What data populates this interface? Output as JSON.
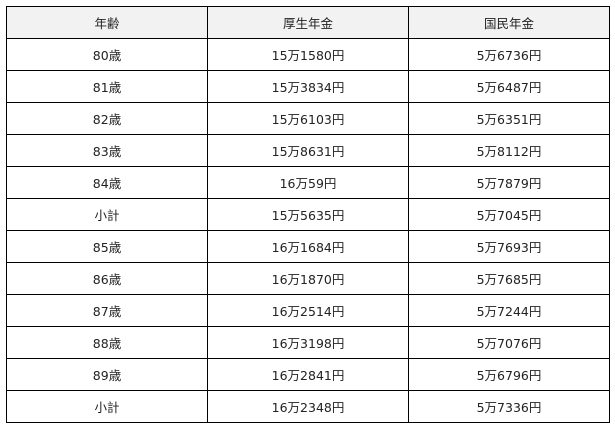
{
  "table": {
    "headers": [
      "年齢",
      "厚生年金",
      "国民年金"
    ],
    "rows": [
      [
        "80歳",
        "15万1580円",
        "5万6736円"
      ],
      [
        "81歳",
        "15万3834円",
        "5万6487円"
      ],
      [
        "82歳",
        "15万6103円",
        "5万6351円"
      ],
      [
        "83歳",
        "15万8631円",
        "5万8112円"
      ],
      [
        "84歳",
        "16万59円",
        "5万7879円"
      ],
      [
        "小計",
        "15万5635円",
        "5万7045円"
      ],
      [
        "85歳",
        "16万1684円",
        "5万7693円"
      ],
      [
        "86歳",
        "16万1870円",
        "5万7685円"
      ],
      [
        "87歳",
        "16万2514円",
        "5万7244円"
      ],
      [
        "88歳",
        "16万3198円",
        "5万7076円"
      ],
      [
        "89歳",
        "16万2841円",
        "5万6796円"
      ],
      [
        "小計",
        "16万2348円",
        "5万7336円"
      ]
    ]
  }
}
